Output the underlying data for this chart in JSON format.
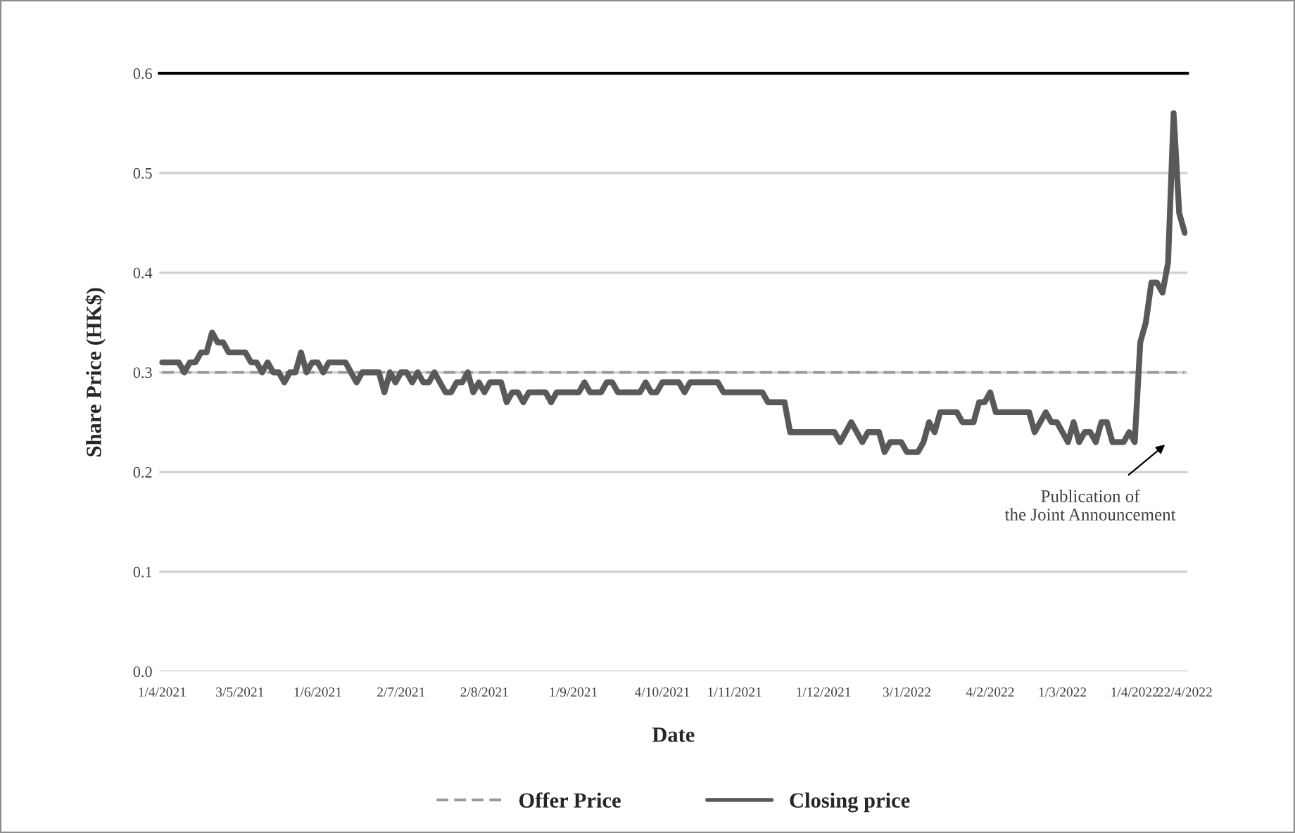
{
  "chart_data": {
    "type": "line",
    "xlabel": "Date",
    "ylabel": "Share Price (HK$)",
    "categories": [
      "1/4/2021",
      null,
      null,
      null,
      null,
      null,
      null,
      null,
      null,
      null,
      null,
      null,
      null,
      null,
      "3/5/2021",
      null,
      null,
      null,
      null,
      null,
      null,
      null,
      null,
      null,
      null,
      null,
      null,
      null,
      "1/6/2021",
      null,
      null,
      null,
      null,
      null,
      null,
      null,
      null,
      null,
      null,
      null,
      null,
      null,
      null,
      "2/7/2021",
      null,
      null,
      null,
      null,
      null,
      null,
      null,
      null,
      null,
      null,
      null,
      null,
      null,
      null,
      "2/8/2021",
      null,
      null,
      null,
      null,
      null,
      null,
      null,
      null,
      null,
      null,
      null,
      null,
      null,
      null,
      null,
      "1/9/2021",
      null,
      null,
      null,
      null,
      null,
      null,
      null,
      null,
      null,
      null,
      null,
      null,
      null,
      null,
      null,
      "4/10/2021",
      null,
      null,
      null,
      null,
      null,
      null,
      null,
      null,
      null,
      null,
      null,
      null,
      "1/11/2021",
      null,
      null,
      null,
      null,
      null,
      null,
      null,
      null,
      null,
      null,
      null,
      null,
      null,
      null,
      null,
      "1/12/2021",
      null,
      null,
      null,
      null,
      null,
      null,
      null,
      null,
      null,
      null,
      null,
      null,
      null,
      null,
      "3/1/2022",
      null,
      null,
      null,
      null,
      null,
      null,
      null,
      null,
      null,
      null,
      null,
      null,
      null,
      null,
      "4/2/2022",
      null,
      null,
      null,
      null,
      null,
      null,
      null,
      null,
      null,
      null,
      null,
      null,
      "1/3/2022",
      null,
      null,
      null,
      null,
      null,
      null,
      null,
      null,
      null,
      null,
      null,
      null,
      "1/4/2022",
      null,
      null,
      null,
      null,
      null,
      null,
      null,
      null,
      "22/4/2022"
    ],
    "series": [
      {
        "name": "Offer Price",
        "color": "#999999",
        "line_style": "dashed",
        "values": [
          0.3,
          0.3,
          0.3,
          0.3,
          0.3,
          0.3,
          0.3,
          0.3,
          0.3,
          0.3,
          0.3,
          0.3,
          0.3,
          0.3,
          0.3,
          0.3,
          0.3,
          0.3,
          0.3,
          0.3,
          0.3,
          0.3,
          0.3,
          0.3,
          0.3,
          0.3,
          0.3,
          0.3,
          0.3,
          0.3,
          0.3,
          0.3,
          0.3,
          0.3,
          0.3,
          0.3,
          0.3,
          0.3,
          0.3,
          0.3,
          0.3,
          0.3,
          0.3,
          0.3,
          0.3,
          0.3,
          0.3,
          0.3,
          0.3,
          0.3,
          0.3,
          0.3,
          0.3,
          0.3,
          0.3,
          0.3,
          0.3,
          0.3,
          0.3,
          0.3,
          0.3,
          0.3,
          0.3,
          0.3,
          0.3,
          0.3,
          0.3,
          0.3,
          0.3,
          0.3,
          0.3,
          0.3,
          0.3,
          0.3,
          0.3,
          0.3,
          0.3,
          0.3,
          0.3,
          0.3,
          0.3,
          0.3,
          0.3,
          0.3,
          0.3,
          0.3,
          0.3,
          0.3,
          0.3,
          0.3,
          0.3,
          0.3,
          0.3,
          0.3,
          0.3,
          0.3,
          0.3,
          0.3,
          0.3,
          0.3,
          0.3,
          0.3,
          0.3,
          0.3,
          0.3,
          0.3,
          0.3,
          0.3,
          0.3,
          0.3,
          0.3,
          0.3,
          0.3,
          0.3,
          0.3,
          0.3,
          0.3,
          0.3,
          0.3,
          0.3,
          0.3,
          0.3,
          0.3,
          0.3,
          0.3,
          0.3,
          0.3,
          0.3,
          0.3,
          0.3,
          0.3,
          0.3,
          0.3,
          0.3,
          0.3,
          0.3,
          0.3,
          0.3,
          0.3,
          0.3,
          0.3,
          0.3,
          0.3,
          0.3,
          0.3,
          0.3,
          0.3,
          0.3,
          0.3,
          0.3,
          0.3,
          0.3,
          0.3,
          0.3,
          0.3,
          0.3,
          0.3,
          0.3,
          0.3,
          0.3,
          0.3,
          0.3,
          0.3,
          0.3,
          0.3,
          0.3,
          0.3,
          0.3,
          0.3,
          0.3,
          0.3,
          0.3,
          0.3,
          0.3,
          0.3,
          0.3,
          0.3,
          0.3,
          0.3,
          0.3,
          0.3,
          0.3,
          0.3,
          0.3,
          0.3
        ]
      },
      {
        "name": "Closing price",
        "color": "#595959",
        "line_style": "solid",
        "values": [
          0.31,
          0.31,
          0.31,
          0.31,
          0.3,
          0.31,
          0.31,
          0.32,
          0.32,
          0.34,
          0.33,
          0.33,
          0.32,
          0.32,
          0.32,
          0.32,
          0.31,
          0.31,
          0.3,
          0.31,
          0.3,
          0.3,
          0.29,
          0.3,
          0.3,
          0.32,
          0.3,
          0.31,
          0.31,
          0.3,
          0.31,
          0.31,
          0.31,
          0.31,
          0.3,
          0.29,
          0.3,
          0.3,
          0.3,
          0.3,
          0.28,
          0.3,
          0.29,
          0.3,
          0.3,
          0.29,
          0.3,
          0.29,
          0.29,
          0.3,
          0.29,
          0.28,
          0.28,
          0.29,
          0.29,
          0.3,
          0.28,
          0.29,
          0.28,
          0.29,
          0.29,
          0.29,
          0.27,
          0.28,
          0.28,
          0.27,
          0.28,
          0.28,
          0.28,
          0.28,
          0.27,
          0.28,
          0.28,
          0.28,
          0.28,
          0.28,
          0.29,
          0.28,
          0.28,
          0.28,
          0.29,
          0.29,
          0.28,
          0.28,
          0.28,
          0.28,
          0.28,
          0.29,
          0.28,
          0.28,
          0.29,
          0.29,
          0.29,
          0.29,
          0.28,
          0.29,
          0.29,
          0.29,
          0.29,
          0.29,
          0.29,
          0.28,
          0.28,
          0.28,
          0.28,
          0.28,
          0.28,
          0.28,
          0.28,
          0.27,
          0.27,
          0.27,
          0.27,
          0.24,
          0.24,
          0.24,
          0.24,
          0.24,
          0.24,
          0.24,
          0.24,
          0.24,
          0.23,
          0.24,
          0.25,
          0.24,
          0.23,
          0.24,
          0.24,
          0.24,
          0.22,
          0.23,
          0.23,
          0.23,
          0.22,
          0.22,
          0.22,
          0.23,
          0.25,
          0.24,
          0.26,
          0.26,
          0.26,
          0.26,
          0.25,
          0.25,
          0.25,
          0.27,
          0.27,
          0.28,
          0.26,
          0.26,
          0.26,
          0.26,
          0.26,
          0.26,
          0.26,
          0.24,
          0.25,
          0.26,
          0.25,
          0.25,
          0.24,
          0.23,
          0.25,
          0.23,
          0.24,
          0.24,
          0.23,
          0.25,
          0.25,
          0.23,
          0.23,
          0.23,
          0.24,
          0.23,
          0.33,
          0.35,
          0.39,
          0.39,
          0.38,
          0.41,
          0.56,
          0.46,
          0.44
        ]
      }
    ],
    "ylim": [
      0,
      0.6
    ],
    "yticks": [
      {
        "value": 0,
        "label": "0.0"
      },
      0.1,
      0.2,
      0.3,
      0.4,
      0.5,
      0.6
    ],
    "grid": "y",
    "legend": "bottom",
    "marker": "none",
    "annotations": [
      {
        "text": "Publication of\nthe Joint Announcement",
        "y": 0.23
      }
    ]
  }
}
